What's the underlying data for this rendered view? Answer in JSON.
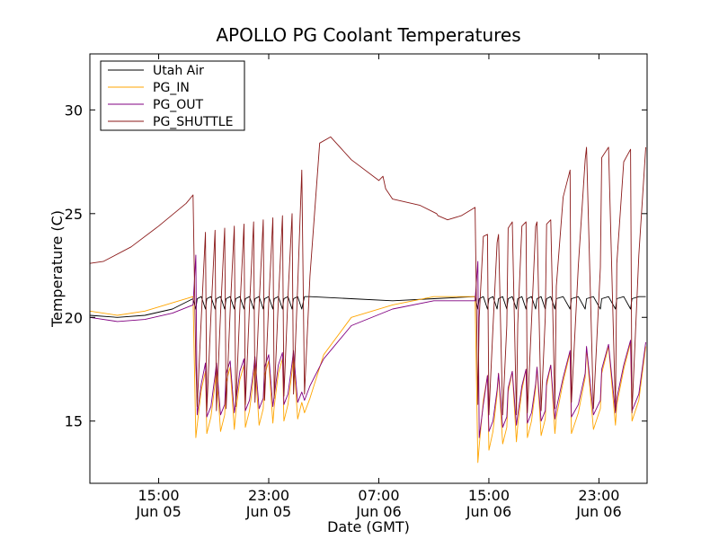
{
  "chart_data": {
    "type": "line",
    "title": "APOLLO PG Coolant Temperatures",
    "xlabel": "Date (GMT)",
    "ylabel": "Temperature (C)",
    "x_unit": "hours since Jun 05 00:00 GMT",
    "xlim": [
      10.0,
      50.5
    ],
    "ylim": [
      12.0,
      32.7
    ],
    "grid": false,
    "legend_position": "top-left",
    "y_ticks": [
      {
        "value": 15,
        "label": "15"
      },
      {
        "value": 20,
        "label": "20"
      },
      {
        "value": 25,
        "label": "25"
      },
      {
        "value": 30,
        "label": "30"
      }
    ],
    "x_ticks": [
      {
        "value": 15,
        "time": "15:00",
        "date": "Jun 05"
      },
      {
        "value": 23,
        "time": "23:00",
        "date": "Jun 05"
      },
      {
        "value": 31,
        "time": "07:00",
        "date": "Jun 06"
      },
      {
        "value": 39,
        "time": "15:00",
        "date": "Jun 06"
      },
      {
        "value": 47,
        "time": "23:00",
        "date": "Jun 06"
      }
    ],
    "series": [
      {
        "name": "Utah Air",
        "color": "#000000",
        "x": [
          10.0,
          12.0,
          14.0,
          16.0,
          17.5,
          17.7,
          17.8,
          18.1,
          18.4,
          18.5,
          18.8,
          19.1,
          19.2,
          19.5,
          19.8,
          19.9,
          20.2,
          20.5,
          20.6,
          20.9,
          21.2,
          21.3,
          21.6,
          21.9,
          22.0,
          22.3,
          22.6,
          22.7,
          23.0,
          23.3,
          23.4,
          23.7,
          24.0,
          24.1,
          24.4,
          24.7,
          24.8,
          25.1,
          25.4,
          25.6,
          26.0,
          29.0,
          32.0,
          35.0,
          38.0,
          38.2,
          38.3,
          38.6,
          38.9,
          39.0,
          39.3,
          39.6,
          39.7,
          40.0,
          40.3,
          40.4,
          40.7,
          41.0,
          41.1,
          41.4,
          41.7,
          41.8,
          42.1,
          42.4,
          42.5,
          42.8,
          43.1,
          43.2,
          43.5,
          43.8,
          43.9,
          44.4,
          44.9,
          45.0,
          45.5,
          46.0,
          46.1,
          46.6,
          47.1,
          47.2,
          47.7,
          48.2,
          48.3,
          48.8,
          49.3,
          49.4,
          49.9,
          50.4
        ],
        "y": [
          20.1,
          20.0,
          20.1,
          20.4,
          20.9,
          20.4,
          20.9,
          21.0,
          20.4,
          20.9,
          21.0,
          20.4,
          20.9,
          21.0,
          20.4,
          20.9,
          21.0,
          20.4,
          20.9,
          21.0,
          20.4,
          20.9,
          21.0,
          20.4,
          20.9,
          21.0,
          20.4,
          20.9,
          21.0,
          20.4,
          20.9,
          21.0,
          20.4,
          20.9,
          21.0,
          20.4,
          20.9,
          21.0,
          20.4,
          21.0,
          21.0,
          20.9,
          20.8,
          20.9,
          21.0,
          20.4,
          20.9,
          21.0,
          20.4,
          20.9,
          21.0,
          20.4,
          20.9,
          21.0,
          20.4,
          20.9,
          21.0,
          20.4,
          20.9,
          21.0,
          20.4,
          20.9,
          21.0,
          20.4,
          20.9,
          21.0,
          20.4,
          20.9,
          21.0,
          20.4,
          20.9,
          21.0,
          20.4,
          20.9,
          21.0,
          20.4,
          20.9,
          21.0,
          20.4,
          20.9,
          21.0,
          20.4,
          20.9,
          21.0,
          20.4,
          20.9,
          21.0,
          21.0
        ]
      },
      {
        "name": "PG_IN",
        "color": "#ffa500",
        "x": [
          10.0,
          12.0,
          14.0,
          16.0,
          17.5,
          17.7,
          17.8,
          18.1,
          18.4,
          18.5,
          18.8,
          19.1,
          19.2,
          19.5,
          19.8,
          19.9,
          20.2,
          20.5,
          20.6,
          20.9,
          21.2,
          21.3,
          21.6,
          21.9,
          22.0,
          22.3,
          22.6,
          22.7,
          23.0,
          23.3,
          23.4,
          23.7,
          24.0,
          24.1,
          24.4,
          24.7,
          24.8,
          25.1,
          25.4,
          25.6,
          26.0,
          27.0,
          29.0,
          32.0,
          35.0,
          38.0,
          38.2,
          38.3,
          38.6,
          38.9,
          39.0,
          39.3,
          39.6,
          39.7,
          40.0,
          40.3,
          40.4,
          40.7,
          41.0,
          41.1,
          41.4,
          41.7,
          41.8,
          42.1,
          42.4,
          42.5,
          42.8,
          43.1,
          43.2,
          43.5,
          43.8,
          43.9,
          44.4,
          44.9,
          45.0,
          45.5,
          46.0,
          46.1,
          46.6,
          47.1,
          47.2,
          47.7,
          48.2,
          48.3,
          48.8,
          49.3,
          49.4,
          49.9,
          50.4
        ],
        "y": [
          20.3,
          20.1,
          20.3,
          20.7,
          21.0,
          14.2,
          14.8,
          16.5,
          17.4,
          14.4,
          15.2,
          16.8,
          17.5,
          14.5,
          15.3,
          16.9,
          17.6,
          14.6,
          15.4,
          17.0,
          17.7,
          14.7,
          15.5,
          17.1,
          17.8,
          14.8,
          15.6,
          17.2,
          17.9,
          14.9,
          15.7,
          17.3,
          18.0,
          15.0,
          15.8,
          17.4,
          18.1,
          15.1,
          15.9,
          15.4,
          16.1,
          18.2,
          20.0,
          20.6,
          21.0,
          21.0,
          13.0,
          13.8,
          16.0,
          17.2,
          13.6,
          14.5,
          16.3,
          17.3,
          13.9,
          14.7,
          16.4,
          17.4,
          14.0,
          14.8,
          16.5,
          17.5,
          14.2,
          15.0,
          16.6,
          17.6,
          14.3,
          15.1,
          16.7,
          17.7,
          14.4,
          15.2,
          16.9,
          18.3,
          14.4,
          15.4,
          17.1,
          18.5,
          14.6,
          15.6,
          17.3,
          18.6,
          14.8,
          15.8,
          17.5,
          18.8,
          15.0,
          16.0,
          18.6
        ]
      },
      {
        "name": "PG_OUT",
        "color": "#800080",
        "x": [
          10.0,
          12.0,
          14.0,
          16.0,
          17.5,
          17.7,
          17.8,
          18.1,
          18.4,
          18.5,
          18.8,
          19.1,
          19.2,
          19.5,
          19.8,
          19.9,
          20.2,
          20.5,
          20.6,
          20.9,
          21.2,
          21.3,
          21.6,
          21.9,
          22.0,
          22.3,
          22.6,
          22.7,
          23.0,
          23.3,
          23.4,
          23.7,
          24.0,
          24.1,
          24.4,
          24.7,
          24.8,
          25.1,
          25.4,
          25.6,
          26.0,
          27.0,
          29.0,
          32.0,
          35.0,
          38.0,
          38.2,
          38.3,
          38.6,
          38.9,
          39.0,
          39.3,
          39.6,
          39.7,
          40.0,
          40.3,
          40.4,
          40.7,
          41.0,
          41.1,
          41.4,
          41.7,
          41.8,
          42.1,
          42.4,
          42.5,
          42.8,
          43.1,
          43.2,
          43.5,
          43.8,
          43.9,
          44.4,
          44.9,
          45.0,
          45.5,
          46.0,
          46.1,
          46.6,
          47.1,
          47.2,
          47.7,
          48.2,
          48.3,
          48.8,
          49.3,
          49.4,
          49.9,
          50.4
        ],
        "y": [
          20.0,
          19.8,
          19.9,
          20.2,
          20.6,
          23.0,
          15.3,
          16.8,
          17.8,
          15.2,
          15.7,
          17.2,
          17.8,
          15.3,
          15.8,
          17.3,
          17.9,
          15.4,
          15.9,
          17.4,
          18.0,
          15.5,
          16.0,
          17.5,
          18.1,
          15.6,
          16.1,
          17.6,
          18.2,
          15.7,
          16.2,
          17.7,
          18.3,
          15.8,
          16.3,
          17.8,
          18.4,
          15.9,
          16.4,
          16.0,
          16.7,
          18.0,
          19.6,
          20.4,
          20.8,
          20.8,
          22.7,
          14.2,
          15.8,
          17.2,
          14.5,
          15.0,
          16.5,
          17.3,
          14.7,
          15.2,
          16.6,
          17.4,
          14.8,
          15.3,
          16.7,
          17.5,
          14.9,
          15.4,
          16.8,
          17.6,
          15.0,
          15.5,
          16.9,
          17.7,
          15.1,
          15.6,
          17.1,
          18.4,
          15.2,
          15.8,
          17.3,
          18.6,
          15.3,
          16.0,
          17.5,
          18.7,
          15.4,
          16.1,
          17.7,
          18.9,
          15.5,
          16.3,
          18.8
        ]
      },
      {
        "name": "PG_SHUTTLE",
        "color": "#8b1a1a",
        "x": [
          10.0,
          11.0,
          13.0,
          15.0,
          17.0,
          17.5,
          17.7,
          17.8,
          18.1,
          18.4,
          18.5,
          18.8,
          19.1,
          19.2,
          19.5,
          19.8,
          19.9,
          20.2,
          20.5,
          20.6,
          20.9,
          21.2,
          21.3,
          21.6,
          21.9,
          22.0,
          22.3,
          22.6,
          22.7,
          23.0,
          23.3,
          23.4,
          23.7,
          24.0,
          24.1,
          24.4,
          24.7,
          24.8,
          25.1,
          25.4,
          25.6,
          26.0,
          26.7,
          27.5,
          29.0,
          31.0,
          31.3,
          31.5,
          32.0,
          34.0,
          35.2,
          35.3,
          36.0,
          37.0,
          38.0,
          38.2,
          38.3,
          38.6,
          38.9,
          39.0,
          39.3,
          39.6,
          39.7,
          40.0,
          40.3,
          40.4,
          40.7,
          41.0,
          41.1,
          41.4,
          41.7,
          41.8,
          42.1,
          42.4,
          42.5,
          42.8,
          43.1,
          43.2,
          43.5,
          43.8,
          43.9,
          44.4,
          44.9,
          45.0,
          45.5,
          46.0,
          46.1,
          46.6,
          47.1,
          47.2,
          47.7,
          48.2,
          48.3,
          48.8,
          49.3,
          49.4,
          49.9,
          50.4
        ],
        "y": [
          22.6,
          22.7,
          23.4,
          24.4,
          25.5,
          25.9,
          17.7,
          15.7,
          20.0,
          24.1,
          15.5,
          20.1,
          24.2,
          15.5,
          20.2,
          24.3,
          15.6,
          20.3,
          24.4,
          15.7,
          20.4,
          24.5,
          15.8,
          20.5,
          24.6,
          15.9,
          20.6,
          24.7,
          16.0,
          20.7,
          24.8,
          16.1,
          20.8,
          24.9,
          16.2,
          21.0,
          25.0,
          16.3,
          21.5,
          27.1,
          16.3,
          22.0,
          28.4,
          28.7,
          27.6,
          26.6,
          26.8,
          26.2,
          25.7,
          25.4,
          25.0,
          24.9,
          24.7,
          24.9,
          25.3,
          15.8,
          20.0,
          23.9,
          24.0,
          15.3,
          19.5,
          23.6,
          24.0,
          15.3,
          19.6,
          24.3,
          24.6,
          15.3,
          19.7,
          24.4,
          24.6,
          15.4,
          19.8,
          24.4,
          24.6,
          15.5,
          20.0,
          24.5,
          24.7,
          15.6,
          21.5,
          25.8,
          27.1,
          15.9,
          22.5,
          27.6,
          28.2,
          15.6,
          22.4,
          27.7,
          28.2,
          15.5,
          22.6,
          27.5,
          28.1,
          15.4,
          23.0,
          28.2
        ]
      }
    ]
  }
}
